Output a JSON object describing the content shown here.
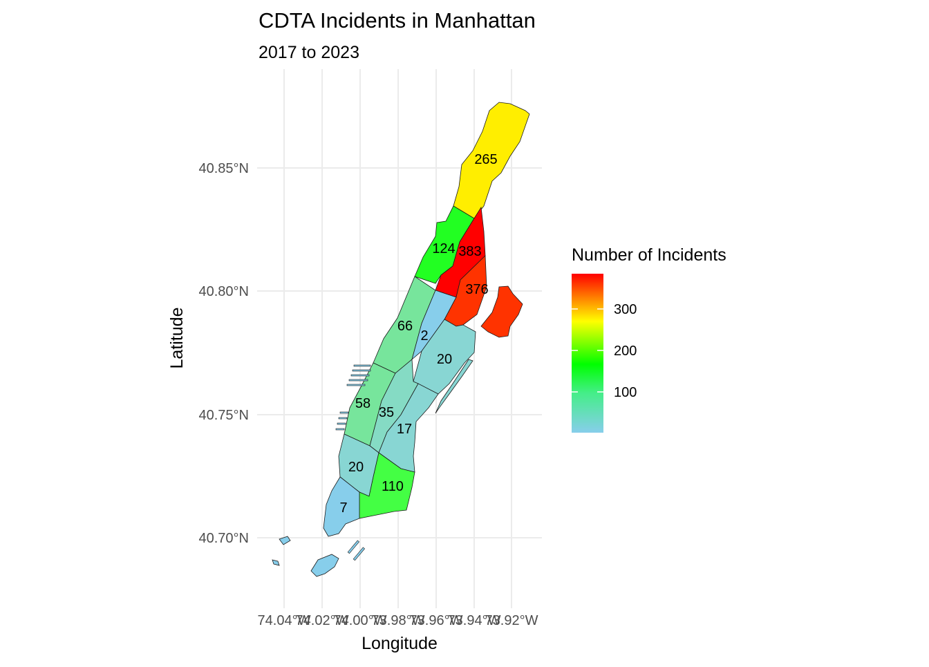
{
  "title": "CDTA Incidents in Manhattan",
  "subtitle": "2017 to 2023",
  "axes": {
    "xlabel": "Longitude",
    "ylabel": "Latitude",
    "x_ticks": [
      "74.04°W",
      "74.02°W",
      "74.00°W",
      "73.98°W",
      "73.96°W",
      "73.94°W",
      "73.92°W"
    ],
    "y_ticks": [
      "40.85°N",
      "40.80°N",
      "40.75°N",
      "40.70°N"
    ]
  },
  "legend": {
    "title": "Number of Incidents",
    "ticks": [
      "300",
      "200",
      "100"
    ],
    "colors": [
      "#ff0000",
      "#ffff00",
      "#00ff00",
      "#87ceeb"
    ]
  },
  "chart_data": {
    "type": "choropleth",
    "title": "CDTA Incidents in Manhattan",
    "subtitle": "2017 to 2023",
    "xlabel": "Longitude",
    "ylabel": "Latitude",
    "xlim": [
      -74.05,
      -73.91
    ],
    "ylim": [
      40.68,
      40.88
    ],
    "regions": [
      {
        "label": "265",
        "value": 265,
        "color": "#ffee00"
      },
      {
        "label": "124",
        "value": 124,
        "color": "#22ff22"
      },
      {
        "label": "383",
        "value": 383,
        "color": "#ff0000"
      },
      {
        "label": "376",
        "value": 376,
        "color": "#ff3300"
      },
      {
        "label": "66",
        "value": 66,
        "color": "#77e59c"
      },
      {
        "label": "2",
        "value": 2,
        "color": "#87ceeb"
      },
      {
        "label": "20",
        "value": 20,
        "color": "#88d6d3"
      },
      {
        "label": "58",
        "value": 58,
        "color": "#77e59c"
      },
      {
        "label": "35",
        "value": 35,
        "color": "#85dbc4"
      },
      {
        "label": "17",
        "value": 17,
        "color": "#88d6d3"
      },
      {
        "label": "20",
        "value": 20,
        "color": "#88d6d3"
      },
      {
        "label": "110",
        "value": 110,
        "color": "#44ff44"
      },
      {
        "label": "7",
        "value": 7,
        "color": "#87ceeb"
      }
    ]
  }
}
